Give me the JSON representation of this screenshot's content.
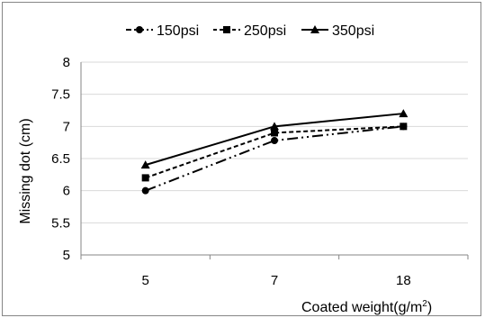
{
  "chart_data": {
    "type": "line",
    "title": "",
    "x": [
      "5",
      "7",
      "18"
    ],
    "xlabel": "Coated weight(g/m2)",
    "xlabel_main": "Coated weight(g/m",
    "xlabel_sup": "2",
    "xlabel_end": ")",
    "ylabel": "Missing dot (cm)",
    "ylim": [
      5,
      8
    ],
    "yticks": [
      "5",
      "5.5",
      "6",
      "6.5",
      "7",
      "7.5",
      "8"
    ],
    "grid": "horizontal",
    "legend": "top",
    "series": [
      {
        "name": "150psi",
        "marker": "circle",
        "dash": "long-dash-dot-dot",
        "values": [
          6.0,
          6.78,
          7.0
        ]
      },
      {
        "name": "250psi",
        "marker": "square",
        "dash": "short-dash",
        "values": [
          6.2,
          6.9,
          7.0
        ]
      },
      {
        "name": "350psi",
        "marker": "triangle",
        "dash": "solid",
        "values": [
          6.4,
          7.0,
          7.2
        ]
      }
    ],
    "colors": {
      "line": "#000000",
      "grid": "#d9d9d9",
      "axis": "#868686",
      "frame": "#868686"
    }
  }
}
